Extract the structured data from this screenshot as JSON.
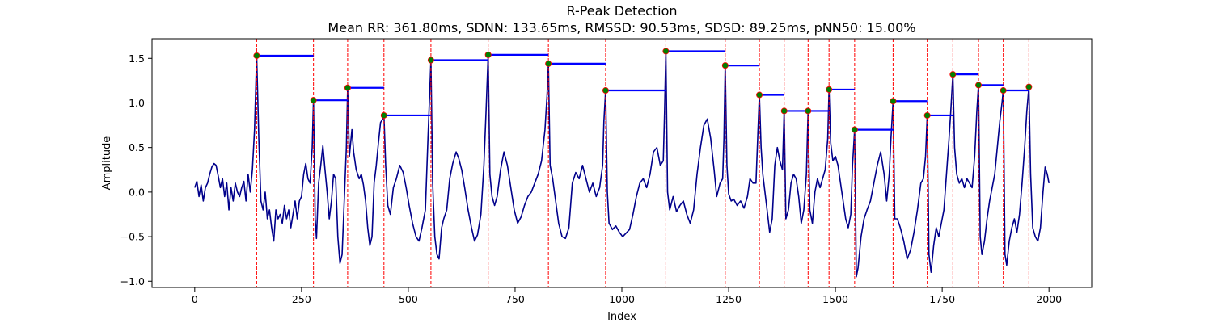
{
  "chart_data": {
    "type": "line",
    "title": "R-Peak Detection",
    "subtitle": "Mean RR: 361.80ms, SDNN: 133.65ms, RMSSD: 90.53ms, SDSD: 89.25ms, pNN50: 15.00%",
    "xlabel": "Index",
    "ylabel": "Amplitude",
    "xlim": [
      -100,
      2100
    ],
    "ylim": [
      -1.07,
      1.72
    ],
    "x_ticks": [
      0,
      250,
      500,
      750,
      1000,
      1250,
      1500,
      1750,
      2000
    ],
    "y_ticks": [
      -1.0,
      -0.5,
      0.0,
      0.5,
      1.0,
      1.5
    ],
    "grid": false,
    "colors": {
      "signal": "#00008b",
      "peak_line": "#ff0000",
      "peak_marker_fill": "#008000",
      "peak_marker_edge": "#ff0000",
      "rr_segment": "#0000ff"
    },
    "peaks": [
      {
        "x": 145,
        "y": 1.53
      },
      {
        "x": 278,
        "y": 1.03
      },
      {
        "x": 358,
        "y": 1.17
      },
      {
        "x": 443,
        "y": 0.86
      },
      {
        "x": 553,
        "y": 1.48
      },
      {
        "x": 687,
        "y": 1.54
      },
      {
        "x": 828,
        "y": 1.44
      },
      {
        "x": 962,
        "y": 1.14
      },
      {
        "x": 1103,
        "y": 1.58
      },
      {
        "x": 1242,
        "y": 1.42
      },
      {
        "x": 1322,
        "y": 1.09
      },
      {
        "x": 1380,
        "y": 0.91
      },
      {
        "x": 1436,
        "y": 0.91
      },
      {
        "x": 1485,
        "y": 1.15
      },
      {
        "x": 1545,
        "y": 0.7
      },
      {
        "x": 1635,
        "y": 1.02
      },
      {
        "x": 1715,
        "y": 0.86
      },
      {
        "x": 1775,
        "y": 1.32
      },
      {
        "x": 1835,
        "y": 1.2
      },
      {
        "x": 1893,
        "y": 1.14
      },
      {
        "x": 1953,
        "y": 1.18
      }
    ],
    "rr_segments": [
      {
        "x1": 145,
        "x2": 278,
        "y": 1.53
      },
      {
        "x1": 278,
        "x2": 358,
        "y": 1.03
      },
      {
        "x1": 358,
        "x2": 443,
        "y": 1.17
      },
      {
        "x1": 443,
        "x2": 553,
        "y": 0.86
      },
      {
        "x1": 553,
        "x2": 687,
        "y": 1.48
      },
      {
        "x1": 687,
        "x2": 828,
        "y": 1.54
      },
      {
        "x1": 828,
        "x2": 962,
        "y": 1.44
      },
      {
        "x1": 962,
        "x2": 1103,
        "y": 1.14
      },
      {
        "x1": 1103,
        "x2": 1242,
        "y": 1.58
      },
      {
        "x1": 1242,
        "x2": 1322,
        "y": 1.42
      },
      {
        "x1": 1322,
        "x2": 1380,
        "y": 1.09
      },
      {
        "x1": 1380,
        "x2": 1436,
        "y": 0.91
      },
      {
        "x1": 1436,
        "x2": 1485,
        "y": 0.91
      },
      {
        "x1": 1485,
        "x2": 1545,
        "y": 1.15
      },
      {
        "x1": 1545,
        "x2": 1635,
        "y": 0.7
      },
      {
        "x1": 1635,
        "x2": 1715,
        "y": 1.02
      },
      {
        "x1": 1715,
        "x2": 1775,
        "y": 0.86
      },
      {
        "x1": 1775,
        "x2": 1835,
        "y": 1.32
      },
      {
        "x1": 1835,
        "x2": 1893,
        "y": 1.2
      },
      {
        "x1": 1893,
        "x2": 1953,
        "y": 1.14
      }
    ],
    "signal": [
      [
        0,
        0.05
      ],
      [
        5,
        0.12
      ],
      [
        10,
        -0.05
      ],
      [
        15,
        0.08
      ],
      [
        20,
        -0.1
      ],
      [
        25,
        0.05
      ],
      [
        30,
        0.1
      ],
      [
        35,
        0.2
      ],
      [
        40,
        0.28
      ],
      [
        45,
        0.32
      ],
      [
        50,
        0.3
      ],
      [
        55,
        0.18
      ],
      [
        60,
        0.05
      ],
      [
        65,
        0.15
      ],
      [
        70,
        -0.05
      ],
      [
        75,
        0.1
      ],
      [
        80,
        -0.2
      ],
      [
        85,
        0.05
      ],
      [
        90,
        -0.1
      ],
      [
        95,
        0.1
      ],
      [
        100,
        0.0
      ],
      [
        105,
        -0.05
      ],
      [
        110,
        0.05
      ],
      [
        115,
        0.12
      ],
      [
        120,
        -0.1
      ],
      [
        125,
        0.2
      ],
      [
        130,
        0.0
      ],
      [
        135,
        0.25
      ],
      [
        140,
        0.7
      ],
      [
        145,
        1.53
      ],
      [
        150,
        0.6
      ],
      [
        155,
        -0.1
      ],
      [
        160,
        -0.2
      ],
      [
        165,
        0.0
      ],
      [
        170,
        -0.3
      ],
      [
        175,
        -0.2
      ],
      [
        180,
        -0.4
      ],
      [
        185,
        -0.55
      ],
      [
        190,
        -0.2
      ],
      [
        195,
        -0.3
      ],
      [
        200,
        -0.25
      ],
      [
        205,
        -0.35
      ],
      [
        210,
        -0.15
      ],
      [
        215,
        -0.3
      ],
      [
        220,
        -0.2
      ],
      [
        225,
        -0.4
      ],
      [
        230,
        -0.25
      ],
      [
        235,
        -0.1
      ],
      [
        240,
        -0.3
      ],
      [
        245,
        -0.1
      ],
      [
        250,
        -0.05
      ],
      [
        255,
        0.2
      ],
      [
        260,
        0.32
      ],
      [
        265,
        0.15
      ],
      [
        270,
        0.1
      ],
      [
        275,
        0.5
      ],
      [
        278,
        1.03
      ],
      [
        282,
        -0.3
      ],
      [
        285,
        -0.52
      ],
      [
        290,
        0.1
      ],
      [
        295,
        0.3
      ],
      [
        300,
        0.52
      ],
      [
        305,
        0.25
      ],
      [
        310,
        0.0
      ],
      [
        315,
        -0.3
      ],
      [
        320,
        -0.1
      ],
      [
        325,
        0.2
      ],
      [
        330,
        0.15
      ],
      [
        335,
        -0.5
      ],
      [
        340,
        -0.8
      ],
      [
        345,
        -0.7
      ],
      [
        350,
        -0.1
      ],
      [
        355,
        0.5
      ],
      [
        358,
        1.17
      ],
      [
        362,
        0.4
      ],
      [
        368,
        0.7
      ],
      [
        372,
        0.45
      ],
      [
        378,
        0.25
      ],
      [
        385,
        0.15
      ],
      [
        390,
        0.2
      ],
      [
        395,
        0.08
      ],
      [
        400,
        -0.1
      ],
      [
        405,
        -0.4
      ],
      [
        410,
        -0.6
      ],
      [
        415,
        -0.5
      ],
      [
        420,
        0.1
      ],
      [
        425,
        0.3
      ],
      [
        430,
        0.55
      ],
      [
        435,
        0.78
      ],
      [
        440,
        0.82
      ],
      [
        443,
        0.86
      ],
      [
        447,
        0.3
      ],
      [
        452,
        -0.15
      ],
      [
        458,
        -0.25
      ],
      [
        465,
        0.05
      ],
      [
        472,
        0.15
      ],
      [
        480,
        0.3
      ],
      [
        488,
        0.22
      ],
      [
        495,
        0.05
      ],
      [
        502,
        -0.15
      ],
      [
        510,
        -0.35
      ],
      [
        518,
        -0.5
      ],
      [
        525,
        -0.55
      ],
      [
        532,
        -0.4
      ],
      [
        540,
        -0.2
      ],
      [
        546,
        0.6
      ],
      [
        550,
        1.1
      ],
      [
        553,
        1.48
      ],
      [
        557,
        0.1
      ],
      [
        562,
        -0.5
      ],
      [
        567,
        -0.7
      ],
      [
        572,
        -0.75
      ],
      [
        578,
        -0.4
      ],
      [
        583,
        -0.3
      ],
      [
        590,
        -0.2
      ],
      [
        597,
        0.15
      ],
      [
        604,
        0.32
      ],
      [
        612,
        0.45
      ],
      [
        618,
        0.38
      ],
      [
        625,
        0.25
      ],
      [
        632,
        0.05
      ],
      [
        640,
        -0.2
      ],
      [
        648,
        -0.4
      ],
      [
        655,
        -0.55
      ],
      [
        662,
        -0.48
      ],
      [
        670,
        -0.25
      ],
      [
        677,
        0.3
      ],
      [
        682,
        0.9
      ],
      [
        687,
        1.54
      ],
      [
        691,
        0.2
      ],
      [
        696,
        -0.05
      ],
      [
        702,
        -0.15
      ],
      [
        708,
        -0.05
      ],
      [
        716,
        0.25
      ],
      [
        724,
        0.45
      ],
      [
        732,
        0.3
      ],
      [
        740,
        0.05
      ],
      [
        748,
        -0.2
      ],
      [
        756,
        -0.35
      ],
      [
        764,
        -0.28
      ],
      [
        772,
        -0.15
      ],
      [
        780,
        -0.05
      ],
      [
        788,
        0.0
      ],
      [
        796,
        0.1
      ],
      [
        804,
        0.2
      ],
      [
        812,
        0.35
      ],
      [
        820,
        0.7
      ],
      [
        825,
        1.1
      ],
      [
        828,
        1.44
      ],
      [
        832,
        0.3
      ],
      [
        838,
        0.15
      ],
      [
        845,
        -0.1
      ],
      [
        852,
        -0.35
      ],
      [
        860,
        -0.5
      ],
      [
        868,
        -0.52
      ],
      [
        876,
        -0.4
      ],
      [
        884,
        0.1
      ],
      [
        892,
        0.22
      ],
      [
        900,
        0.15
      ],
      [
        908,
        0.3
      ],
      [
        916,
        0.15
      ],
      [
        924,
        0.0
      ],
      [
        932,
        0.1
      ],
      [
        940,
        -0.05
      ],
      [
        948,
        0.05
      ],
      [
        955,
        0.3
      ],
      [
        958,
        0.8
      ],
      [
        962,
        1.14
      ],
      [
        966,
        0.0
      ],
      [
        970,
        -0.35
      ],
      [
        978,
        -0.42
      ],
      [
        986,
        -0.38
      ],
      [
        994,
        -0.45
      ],
      [
        1002,
        -0.5
      ],
      [
        1010,
        -0.46
      ],
      [
        1018,
        -0.42
      ],
      [
        1026,
        -0.25
      ],
      [
        1034,
        -0.05
      ],
      [
        1042,
        0.1
      ],
      [
        1050,
        0.15
      ],
      [
        1058,
        0.05
      ],
      [
        1066,
        0.2
      ],
      [
        1074,
        0.45
      ],
      [
        1082,
        0.5
      ],
      [
        1090,
        0.3
      ],
      [
        1097,
        0.35
      ],
      [
        1100,
        0.9
      ],
      [
        1103,
        1.58
      ],
      [
        1107,
        0.0
      ],
      [
        1112,
        -0.2
      ],
      [
        1120,
        -0.05
      ],
      [
        1128,
        -0.22
      ],
      [
        1136,
        -0.15
      ],
      [
        1144,
        -0.1
      ],
      [
        1152,
        -0.25
      ],
      [
        1160,
        -0.35
      ],
      [
        1168,
        -0.2
      ],
      [
        1176,
        0.2
      ],
      [
        1184,
        0.5
      ],
      [
        1192,
        0.75
      ],
      [
        1200,
        0.82
      ],
      [
        1208,
        0.6
      ],
      [
        1216,
        0.25
      ],
      [
        1222,
        -0.05
      ],
      [
        1230,
        0.1
      ],
      [
        1236,
        0.15
      ],
      [
        1239,
        0.6
      ],
      [
        1242,
        1.42
      ],
      [
        1246,
        0.3
      ],
      [
        1250,
        -0.02
      ],
      [
        1256,
        -0.1
      ],
      [
        1262,
        -0.08
      ],
      [
        1270,
        -0.15
      ],
      [
        1278,
        -0.1
      ],
      [
        1286,
        -0.18
      ],
      [
        1294,
        -0.05
      ],
      [
        1300,
        0.15
      ],
      [
        1307,
        0.1
      ],
      [
        1314,
        0.1
      ],
      [
        1318,
        0.6
      ],
      [
        1322,
        1.09
      ],
      [
        1326,
        0.5
      ],
      [
        1330,
        0.2
      ],
      [
        1335,
        0.0
      ],
      [
        1340,
        -0.2
      ],
      [
        1346,
        -0.45
      ],
      [
        1352,
        -0.3
      ],
      [
        1358,
        0.3
      ],
      [
        1364,
        0.5
      ],
      [
        1370,
        0.35
      ],
      [
        1376,
        0.25
      ],
      [
        1380,
        0.91
      ],
      [
        1384,
        -0.3
      ],
      [
        1390,
        -0.2
      ],
      [
        1396,
        0.1
      ],
      [
        1402,
        0.2
      ],
      [
        1408,
        0.15
      ],
      [
        1414,
        -0.05
      ],
      [
        1420,
        -0.35
      ],
      [
        1426,
        -0.2
      ],
      [
        1432,
        0.2
      ],
      [
        1436,
        0.91
      ],
      [
        1440,
        -0.2
      ],
      [
        1446,
        -0.35
      ],
      [
        1452,
        0.0
      ],
      [
        1458,
        0.15
      ],
      [
        1464,
        0.05
      ],
      [
        1470,
        0.15
      ],
      [
        1476,
        0.25
      ],
      [
        1482,
        0.6
      ],
      [
        1485,
        1.15
      ],
      [
        1489,
        0.55
      ],
      [
        1494,
        0.35
      ],
      [
        1500,
        0.4
      ],
      [
        1506,
        0.3
      ],
      [
        1512,
        0.1
      ],
      [
        1518,
        -0.1
      ],
      [
        1524,
        -0.3
      ],
      [
        1530,
        -0.4
      ],
      [
        1536,
        -0.25
      ],
      [
        1540,
        0.3
      ],
      [
        1545,
        0.7
      ],
      [
        1549,
        -0.95
      ],
      [
        1553,
        -0.85
      ],
      [
        1560,
        -0.5
      ],
      [
        1567,
        -0.3
      ],
      [
        1574,
        -0.2
      ],
      [
        1582,
        -0.1
      ],
      [
        1590,
        0.1
      ],
      [
        1598,
        0.3
      ],
      [
        1606,
        0.45
      ],
      [
        1614,
        0.2
      ],
      [
        1620,
        -0.1
      ],
      [
        1626,
        0.2
      ],
      [
        1630,
        0.6
      ],
      [
        1635,
        1.02
      ],
      [
        1639,
        -0.3
      ],
      [
        1645,
        -0.3
      ],
      [
        1652,
        -0.4
      ],
      [
        1660,
        -0.55
      ],
      [
        1668,
        -0.75
      ],
      [
        1676,
        -0.65
      ],
      [
        1684,
        -0.45
      ],
      [
        1692,
        -0.2
      ],
      [
        1700,
        0.1
      ],
      [
        1706,
        0.15
      ],
      [
        1711,
        0.4
      ],
      [
        1715,
        0.86
      ],
      [
        1719,
        -0.7
      ],
      [
        1724,
        -0.9
      ],
      [
        1730,
        -0.6
      ],
      [
        1736,
        -0.4
      ],
      [
        1742,
        -0.5
      ],
      [
        1748,
        -0.35
      ],
      [
        1754,
        -0.2
      ],
      [
        1760,
        0.2
      ],
      [
        1766,
        0.6
      ],
      [
        1770,
        0.9
      ],
      [
        1775,
        1.32
      ],
      [
        1779,
        0.5
      ],
      [
        1784,
        0.2
      ],
      [
        1790,
        0.1
      ],
      [
        1796,
        0.15
      ],
      [
        1802,
        0.05
      ],
      [
        1808,
        0.15
      ],
      [
        1814,
        0.1
      ],
      [
        1820,
        0.05
      ],
      [
        1826,
        0.4
      ],
      [
        1831,
        0.9
      ],
      [
        1835,
        1.2
      ],
      [
        1839,
        -0.5
      ],
      [
        1843,
        -0.7
      ],
      [
        1849,
        -0.55
      ],
      [
        1855,
        -0.3
      ],
      [
        1861,
        -0.1
      ],
      [
        1867,
        0.05
      ],
      [
        1873,
        0.2
      ],
      [
        1879,
        0.5
      ],
      [
        1885,
        0.8
      ],
      [
        1890,
        1.0
      ],
      [
        1893,
        1.14
      ],
      [
        1897,
        -0.7
      ],
      [
        1901,
        -0.82
      ],
      [
        1907,
        -0.55
      ],
      [
        1913,
        -0.4
      ],
      [
        1919,
        -0.3
      ],
      [
        1925,
        -0.45
      ],
      [
        1931,
        -0.25
      ],
      [
        1937,
        0.1
      ],
      [
        1943,
        0.5
      ],
      [
        1948,
        0.9
      ],
      [
        1953,
        1.18
      ],
      [
        1957,
        0.2
      ],
      [
        1962,
        -0.4
      ],
      [
        1968,
        -0.5
      ],
      [
        1974,
        -0.55
      ],
      [
        1980,
        -0.4
      ],
      [
        1986,
        0.0
      ],
      [
        1991,
        0.28
      ],
      [
        1996,
        0.2
      ],
      [
        2000,
        0.1
      ]
    ]
  }
}
